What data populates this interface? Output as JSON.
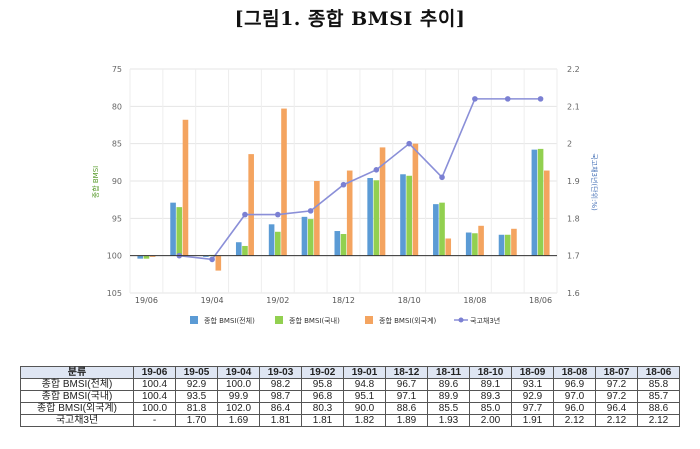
{
  "title": "[그림1. 종합 BMSI 추이]",
  "chart_data": {
    "type": "bar+line",
    "categories": [
      "19/06",
      "19/05",
      "19/04",
      "19/03",
      "19/02",
      "19/01",
      "18/12",
      "18/11",
      "18/10",
      "18/09",
      "18/08",
      "18/07",
      "18/06"
    ],
    "x_tick_labels": [
      "19/06",
      "19/04",
      "19/02",
      "18/12",
      "18/10",
      "18/08",
      "18/06"
    ],
    "y_left": {
      "label": "종합 BMSI",
      "ticks": [
        "75",
        "80",
        "85",
        "90",
        "95",
        "100",
        "105"
      ],
      "inverted": true,
      "lim": [
        75,
        105
      ]
    },
    "y_right": {
      "label": "국고채3년(단위:%)",
      "ticks": [
        "2.2",
        "2.1",
        "2",
        "1.9",
        "1.8",
        "1.7",
        "1.6"
      ],
      "lim": [
        1.6,
        2.2
      ]
    },
    "series": [
      {
        "name": "종합 BMSI(전체)",
        "type": "bar",
        "axis": "left",
        "color": "#5b9bd5",
        "values": [
          100.4,
          92.9,
          100.0,
          98.2,
          95.8,
          94.8,
          96.7,
          89.6,
          89.1,
          93.1,
          96.9,
          97.2,
          85.8
        ]
      },
      {
        "name": "종합 BMSI(국내)",
        "type": "bar",
        "axis": "left",
        "color": "#92d050",
        "values": [
          100.4,
          93.5,
          99.9,
          98.7,
          96.8,
          95.1,
          97.1,
          89.9,
          89.3,
          92.9,
          97.0,
          97.2,
          85.7
        ]
      },
      {
        "name": "종합 BMSI(외국계)",
        "type": "bar",
        "axis": "left",
        "color": "#f4a460",
        "values": [
          100.0,
          81.8,
          102.0,
          86.4,
          80.3,
          90.0,
          88.6,
          85.5,
          85.0,
          97.7,
          96.0,
          96.4,
          88.6
        ]
      },
      {
        "name": "국고채3년",
        "type": "line",
        "axis": "right",
        "color": "#8a8fd8",
        "values": [
          null,
          1.7,
          1.69,
          1.81,
          1.81,
          1.82,
          1.89,
          1.93,
          2.0,
          1.91,
          2.12,
          2.12,
          2.12
        ]
      }
    ],
    "legend_position": "bottom"
  },
  "table": {
    "header": [
      "분류",
      "19-06",
      "19-05",
      "19-04",
      "19-03",
      "19-02",
      "19-01",
      "18-12",
      "18-11",
      "18-10",
      "18-09",
      "18-08",
      "18-07",
      "18-06"
    ],
    "rows": [
      [
        "종합 BMSI(전체)",
        "100.4",
        "92.9",
        "100.0",
        "98.2",
        "95.8",
        "94.8",
        "96.7",
        "89.6",
        "89.1",
        "93.1",
        "96.9",
        "97.2",
        "85.8"
      ],
      [
        "종합 BMSI(국내)",
        "100.4",
        "93.5",
        "99.9",
        "98.7",
        "96.8",
        "95.1",
        "97.1",
        "89.9",
        "89.3",
        "92.9",
        "97.0",
        "97.2",
        "85.7"
      ],
      [
        "종합 BMSI(외국계)",
        "100.0",
        "81.8",
        "102.0",
        "86.4",
        "80.3",
        "90.0",
        "88.6",
        "85.5",
        "85.0",
        "97.7",
        "96.0",
        "96.4",
        "88.6"
      ],
      [
        "국고채3년",
        "-",
        "1.70",
        "1.69",
        "1.81",
        "1.81",
        "1.82",
        "1.89",
        "1.93",
        "2.00",
        "1.91",
        "2.12",
        "2.12",
        "2.12"
      ]
    ]
  }
}
